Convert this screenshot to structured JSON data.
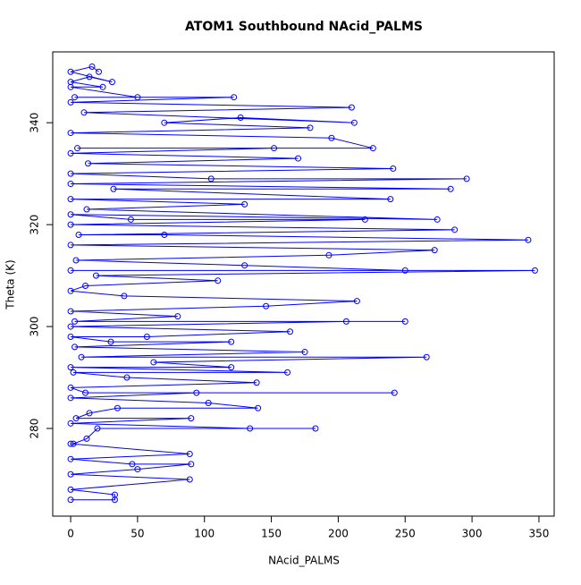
{
  "chart_data": {
    "type": "scatter-line",
    "title": "ATOM1 Southbound NAcid_PALMS",
    "x_label": "NAcid_PALMS",
    "y_label": "Theta (K)",
    "color": "#0000ff",
    "x": [
      0,
      33,
      33,
      0,
      89,
      0,
      50,
      90,
      46,
      0,
      89,
      0,
      2,
      12,
      20,
      183,
      134,
      0,
      90,
      4,
      14,
      35,
      140,
      103,
      0,
      94,
      242,
      11,
      0,
      139,
      42,
      2,
      162,
      0,
      120,
      62,
      266,
      8,
      175,
      3,
      120,
      30,
      0,
      57,
      164,
      0,
      206,
      250,
      3,
      80,
      0,
      146,
      214,
      40,
      0,
      11,
      110,
      19,
      347,
      0,
      250,
      130,
      4,
      193,
      272,
      0,
      342,
      70,
      6,
      287,
      0,
      220,
      45,
      0,
      274,
      12,
      130,
      0,
      239,
      32,
      284,
      0,
      296,
      105,
      0,
      241,
      13,
      170,
      0,
      152,
      5,
      226,
      195,
      0,
      179,
      70,
      127,
      212,
      10,
      210,
      0,
      122,
      3,
      50,
      0,
      24,
      0,
      14,
      31,
      0,
      16,
      21
    ],
    "values": [
      266,
      266,
      267,
      268,
      270,
      271,
      272,
      273,
      273,
      274,
      275,
      277,
      277,
      278,
      280,
      280,
      280,
      281,
      282,
      282,
      283,
      284,
      284,
      285,
      286,
      287,
      287,
      287,
      288,
      289,
      290,
      291,
      291,
      292,
      292,
      293,
      294,
      294,
      295,
      296,
      297,
      297,
      298,
      298,
      299,
      300,
      301,
      301,
      301,
      302,
      303,
      304,
      305,
      306,
      307,
      308,
      309,
      310,
      311,
      311,
      311,
      312,
      313,
      314,
      315,
      316,
      317,
      318,
      318,
      319,
      320,
      321,
      321,
      322,
      321,
      323,
      324,
      325,
      325,
      327,
      327,
      328,
      329,
      329,
      330,
      331,
      332,
      333,
      334,
      335,
      335,
      335,
      337,
      338,
      339,
      340,
      341,
      340,
      342,
      343,
      344,
      345,
      345,
      345,
      347,
      347,
      348,
      349,
      348,
      350,
      351,
      350
    ],
    "xlim": [
      -13.4,
      361.4
    ],
    "ylim": [
      262.8,
      353.9
    ],
    "xticks": [
      0,
      50,
      100,
      150,
      200,
      250,
      300,
      350
    ],
    "yticks": [
      280,
      300,
      320,
      340
    ]
  }
}
